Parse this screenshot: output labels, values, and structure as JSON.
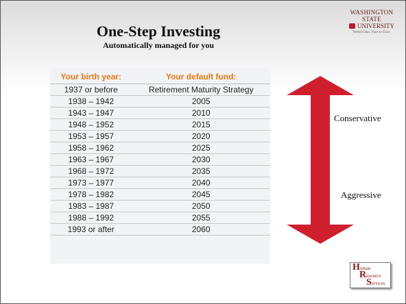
{
  "header": {
    "title": "One-Step Investing",
    "subtitle": "Automatically managed for you"
  },
  "logo": {
    "line1": "WASHINGTON STATE",
    "line2": "UNIVERSITY",
    "tagline": "World Class. Face to Face."
  },
  "table": {
    "columns": [
      "Your birth year:",
      "Your default fund:"
    ],
    "rows": [
      [
        "1937 or before",
        "Retirement Maturity Strategy"
      ],
      [
        "1938 – 1942",
        "2005"
      ],
      [
        "1943 – 1947",
        "2010"
      ],
      [
        "1948 – 1952",
        "2015"
      ],
      [
        "1953 – 1957",
        "2020"
      ],
      [
        "1958 – 1962",
        "2025"
      ],
      [
        "1963 – 1967",
        "2030"
      ],
      [
        "1968 – 1972",
        "2035"
      ],
      [
        "1973 – 1977",
        "2040"
      ],
      [
        "1978 – 1982",
        "2045"
      ],
      [
        "1983 – 1987",
        "2050"
      ],
      [
        "1988 – 1992",
        "2055"
      ],
      [
        "1993 or after",
        "2060"
      ]
    ]
  },
  "arrow": {
    "top_label": "Conservative",
    "bottom_label": "Aggressive"
  },
  "hrs_logo": [
    {
      "initial": "H",
      "rest": "uman"
    },
    {
      "initial": "R",
      "rest": "esource"
    },
    {
      "initial": "S",
      "rest": "ervices"
    }
  ]
}
